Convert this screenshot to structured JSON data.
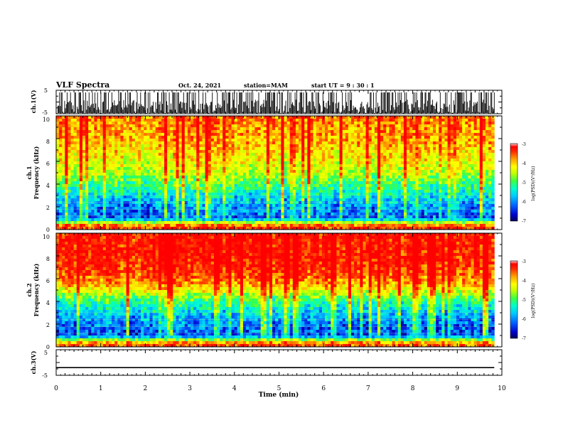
{
  "header": {
    "title": "VLF Spectra",
    "date": "Oct. 24, 2021",
    "station": "station=MAM",
    "start": "start  UT  =   9 : 30 : 1"
  },
  "colors": {
    "colormap": [
      "#00005a",
      "#0000cc",
      "#0060ff",
      "#00c8ff",
      "#00ffcc",
      "#40ff40",
      "#c8ff00",
      "#ffff00",
      "#ffa000",
      "#ff2800",
      "#ff0000",
      "#ffffff"
    ]
  },
  "chart_data": [
    {
      "type": "line",
      "panel": "ch1-waveform",
      "ylabel": "ch.1(V)",
      "yticks": [
        "5",
        "-5"
      ],
      "ylim": [
        -5,
        5
      ],
      "x_range": [
        0,
        9.83
      ],
      "description_values": {
        "trace_min": -5,
        "trace_max": 5,
        "baseline": -5
      }
    },
    {
      "type": "heatmap",
      "panel": "ch1-spectrogram",
      "ylabel": "ch.1 Frequency (kHz)",
      "ylabel_lines": [
        "ch.1",
        "Frequency  (kHz)"
      ],
      "yticks": [
        "0",
        "2",
        "4",
        "6",
        "8",
        "10"
      ],
      "ylim": [
        0,
        10
      ],
      "x_range": [
        0,
        9.83
      ],
      "colorbar": {
        "label": "log(PSD)(V²/Hz)",
        "ticks": [
          "-3",
          "-4",
          "-5",
          "-6",
          "-7"
        ],
        "range": [
          -7,
          -3
        ]
      },
      "level_profile_kHz": [
        {
          "f": 0.3,
          "v": -3.4
        },
        {
          "f": 1.0,
          "v": -6.2
        },
        {
          "f": 2.0,
          "v": -6.0
        },
        {
          "f": 3.0,
          "v": -5.6
        },
        {
          "f": 4.0,
          "v": -5.1
        },
        {
          "f": 5.0,
          "v": -4.6
        },
        {
          "f": 6.0,
          "v": -4.3
        },
        {
          "f": 7.0,
          "v": -4.1
        },
        {
          "f": 8.0,
          "v": -3.9
        },
        {
          "f": 9.0,
          "v": -3.8
        },
        {
          "f": 10.0,
          "v": -3.7
        }
      ]
    },
    {
      "type": "heatmap",
      "panel": "ch2-spectrogram",
      "ylabel": "ch.2 Frequency (kHz)",
      "ylabel_lines": [
        "ch.2",
        "Frequency  (kHz)"
      ],
      "yticks": [
        "0",
        "2",
        "4",
        "6",
        "8",
        "10"
      ],
      "ylim": [
        0,
        10
      ],
      "x_range": [
        0,
        9.83
      ],
      "colorbar": {
        "label": "log(PSD)(V²/Hz)",
        "ticks": [
          "-3",
          "-4",
          "-5",
          "-6",
          "-7"
        ],
        "range": [
          -7,
          -3
        ]
      },
      "level_profile_kHz": [
        {
          "f": 0.3,
          "v": -3.6
        },
        {
          "f": 1.0,
          "v": -6.3
        },
        {
          "f": 2.0,
          "v": -6.1
        },
        {
          "f": 3.0,
          "v": -5.7
        },
        {
          "f": 4.0,
          "v": -5.2
        },
        {
          "f": 5.0,
          "v": -4.3
        },
        {
          "f": 6.0,
          "v": -3.6
        },
        {
          "f": 7.0,
          "v": -3.3
        },
        {
          "f": 8.0,
          "v": -3.2
        },
        {
          "f": 9.0,
          "v": -3.2
        },
        {
          "f": 10.0,
          "v": -3.2
        }
      ]
    },
    {
      "type": "line",
      "panel": "ch3-waveform",
      "ylabel": "ch.3(V)",
      "yticks": [
        "5",
        "-5"
      ],
      "ylim": [
        -5,
        5
      ],
      "x": [
        0,
        9.83
      ],
      "y": [
        -2.0,
        -2.0
      ],
      "xlabel": "Time  (min)",
      "xticks": [
        "0",
        "1",
        "2",
        "3",
        "4",
        "5",
        "6",
        "7",
        "8",
        "9",
        "10"
      ],
      "xlim": [
        0,
        10
      ]
    }
  ]
}
